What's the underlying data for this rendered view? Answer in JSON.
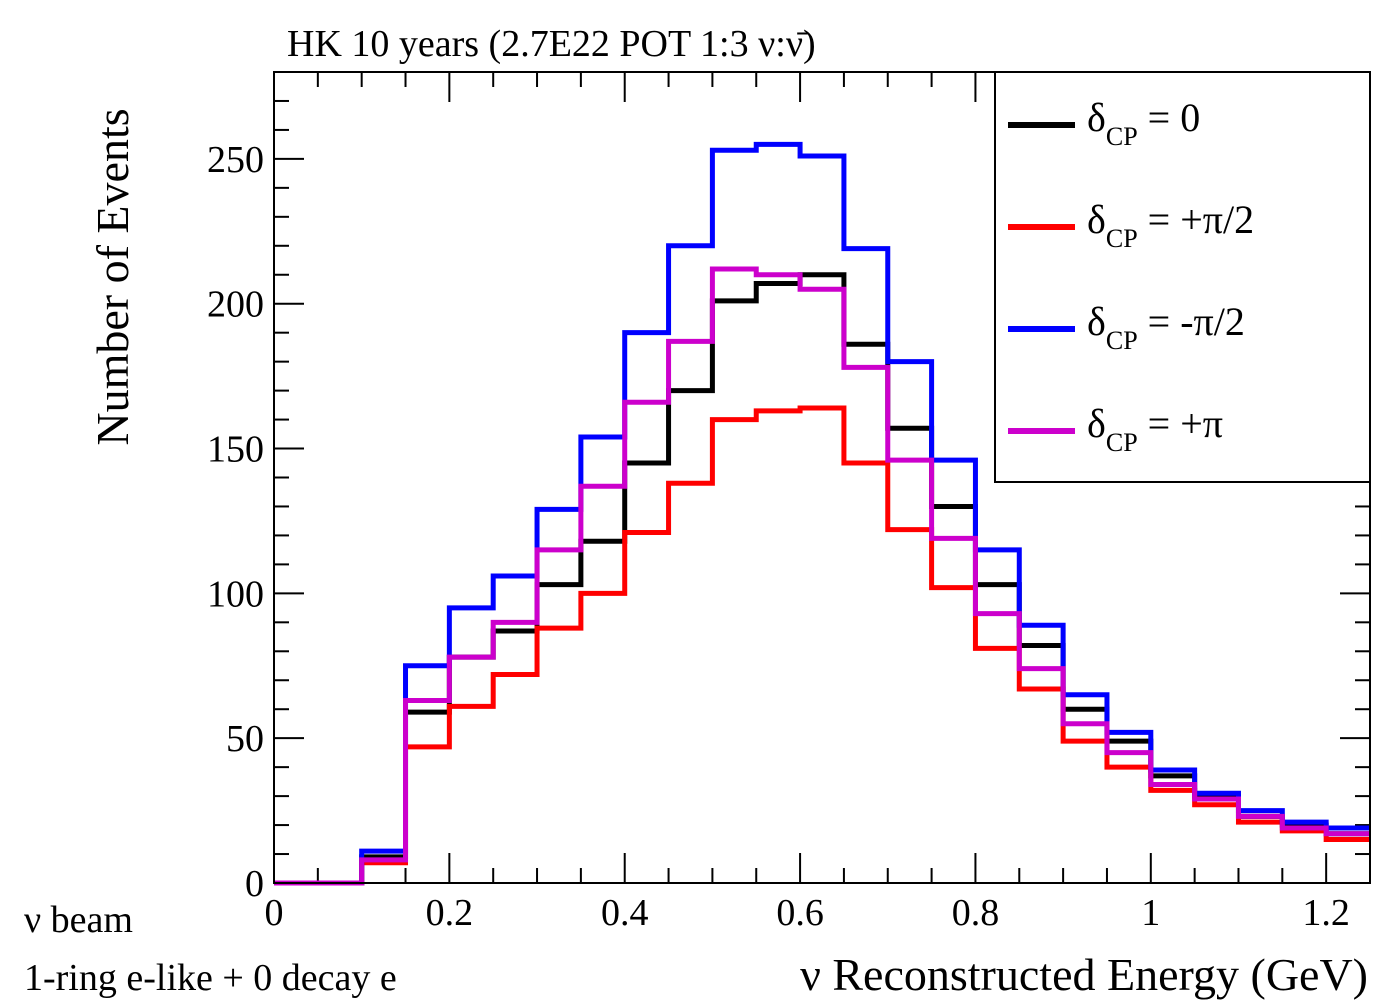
{
  "chart_data": {
    "type": "line",
    "style": "step histogram",
    "title": "HK 10 years (2.7E22 POT 1:3 ν:ν̄)",
    "xlabel": "ν Reconstructed Energy (GeV)",
    "ylabel": "Number of Events",
    "xlim": [
      0,
      1.25
    ],
    "ylim": [
      0,
      280
    ],
    "x_ticks": [
      "0",
      "0.2",
      "0.4",
      "0.6",
      "0.8",
      "1",
      "1.2"
    ],
    "x_tick_values": [
      0,
      0.2,
      0.4,
      0.6,
      0.8,
      1.0,
      1.2
    ],
    "y_ticks": [
      "0",
      "50",
      "100",
      "150",
      "200",
      "250"
    ],
    "y_tick_values": [
      0,
      50,
      100,
      150,
      200,
      250
    ],
    "bin_edges": [
      0,
      0.05,
      0.1,
      0.15,
      0.2,
      0.25,
      0.3,
      0.35,
      0.4,
      0.45,
      0.5,
      0.55,
      0.6,
      0.65,
      0.7,
      0.75,
      0.8,
      0.85,
      0.9,
      0.95,
      1.0,
      1.05,
      1.1,
      1.15,
      1.2,
      1.25
    ],
    "series": [
      {
        "name_main": "δ",
        "name_sub": "CP",
        "name_rest": " = 0",
        "color": "#000000",
        "values": [
          0,
          0,
          9,
          59,
          78,
          87,
          103,
          118,
          145,
          170,
          201,
          207,
          210,
          186,
          157,
          130,
          103,
          82,
          60,
          49,
          37,
          30,
          23,
          20,
          17
        ]
      },
      {
        "name_main": "δ",
        "name_sub": "CP",
        "name_rest": " = +π/2",
        "color": "#ff0000",
        "values": [
          0,
          0,
          7,
          47,
          61,
          72,
          88,
          100,
          121,
          138,
          160,
          163,
          164,
          145,
          122,
          102,
          81,
          67,
          49,
          40,
          32,
          27,
          21,
          18,
          15
        ]
      },
      {
        "name_main": "δ",
        "name_sub": "CP",
        "name_rest": " = -π/2",
        "color": "#0000ff",
        "values": [
          0,
          0,
          11,
          75,
          95,
          106,
          129,
          154,
          190,
          220,
          253,
          255,
          251,
          219,
          180,
          146,
          115,
          89,
          65,
          52,
          39,
          31,
          25,
          21,
          19
        ]
      },
      {
        "name_main": "δ",
        "name_sub": "CP",
        "name_rest": " = +π",
        "color": "#cc00cc",
        "values": [
          0,
          0,
          8,
          63,
          78,
          90,
          115,
          137,
          166,
          187,
          212,
          210,
          205,
          178,
          146,
          119,
          93,
          74,
          55,
          45,
          34,
          29,
          23,
          19,
          17
        ]
      }
    ],
    "legend_position": "top-right",
    "grid": false
  },
  "notes": {
    "beam": "ν beam",
    "selection": "1-ring e-like + 0 decay e"
  }
}
